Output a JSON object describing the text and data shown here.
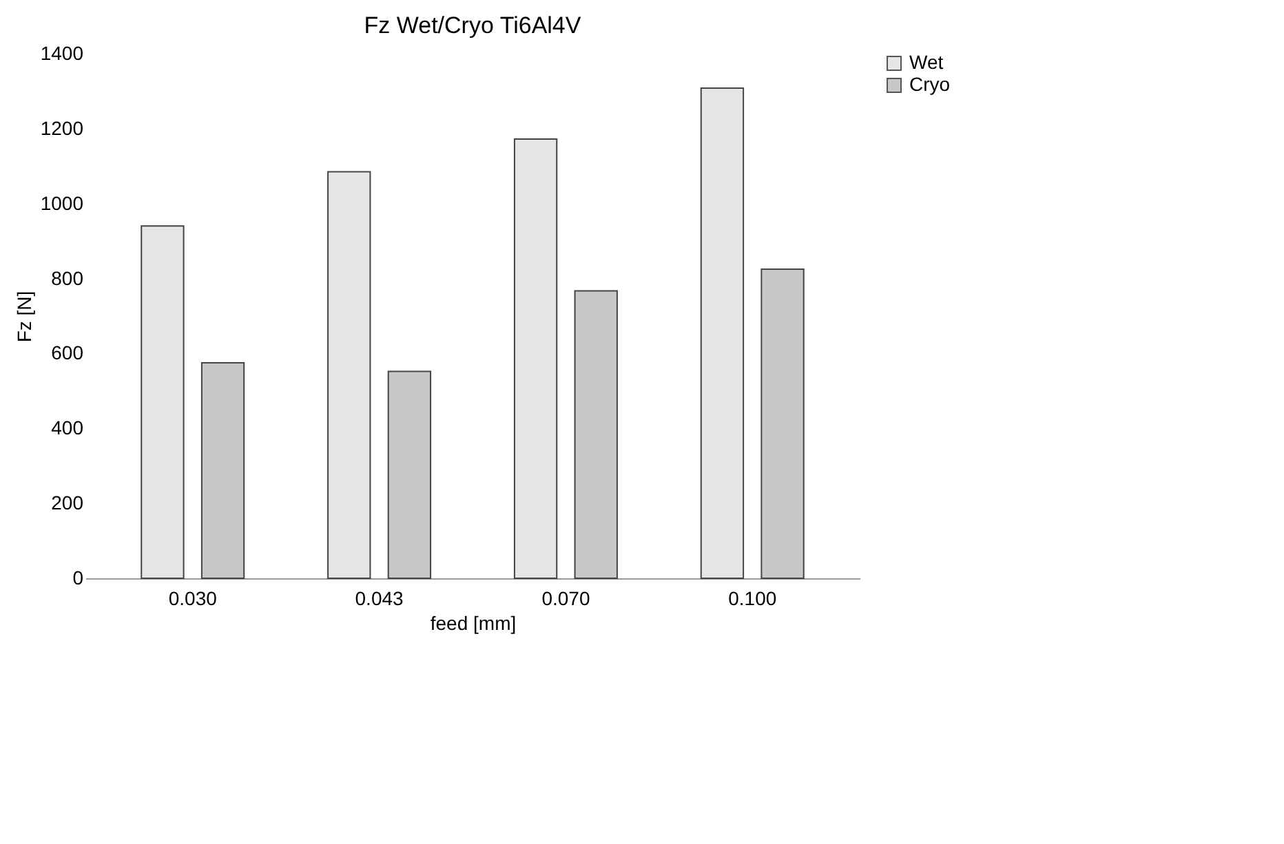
{
  "chart_data": {
    "type": "bar",
    "title": "Fz Wet/Cryo Ti6Al4V",
    "xlabel": "feed [mm]",
    "ylabel": "Fz [N]",
    "categories": [
      "0.030",
      "0.043",
      "0.070",
      "0.100"
    ],
    "series": [
      {
        "name": "Wet",
        "color": "#e6e6e6",
        "values": [
          940,
          1085,
          1172,
          1308
        ]
      },
      {
        "name": "Cryo",
        "color": "#c8c8c8",
        "values": [
          575,
          552,
          767,
          825
        ]
      }
    ],
    "ylim": [
      0,
      1400
    ],
    "yticks": [
      0,
      200,
      400,
      600,
      800,
      1000,
      1200,
      1400
    ],
    "grid": false,
    "legend": "right"
  }
}
